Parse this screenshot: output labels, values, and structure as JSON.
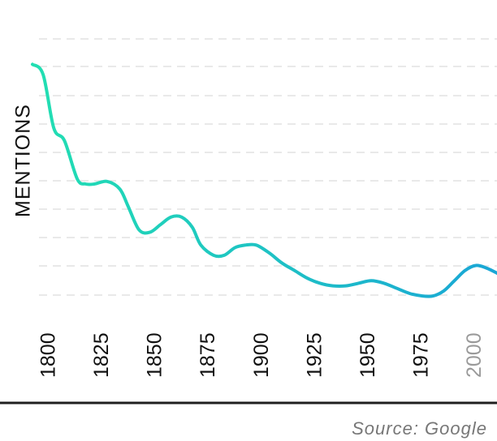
{
  "chart_data": {
    "type": "line",
    "ylabel": "MENTIONS",
    "xlabel": "",
    "title": "",
    "x_ticks": [
      "1800",
      "1825",
      "1850",
      "1875",
      "1900",
      "1925",
      "1950",
      "1975",
      "2000"
    ],
    "xlim": [
      1793,
      2011
    ],
    "ylim": [
      0,
      10
    ],
    "grid": true,
    "gradient_colors": [
      "#22dfb2",
      "#1aa6d6"
    ],
    "x": [
      1793,
      1798,
      1803,
      1808,
      1814,
      1818,
      1822,
      1828,
      1834,
      1838,
      1843,
      1848,
      1853,
      1858,
      1863,
      1868,
      1872,
      1878,
      1883,
      1888,
      1893,
      1898,
      1904,
      1910,
      1916,
      1922,
      1928,
      1934,
      1940,
      1946,
      1952,
      1958,
      1964,
      1970,
      1976,
      1981,
      1986,
      1991,
      1996,
      2001,
      2006,
      2011
    ],
    "y": [
      9.0,
      8.6,
      6.5,
      6.0,
      4.5,
      4.3,
      4.3,
      4.4,
      4.1,
      3.4,
      2.5,
      2.4,
      2.7,
      3.0,
      3.0,
      2.6,
      1.9,
      1.5,
      1.5,
      1.8,
      1.9,
      1.9,
      1.6,
      1.2,
      0.9,
      0.6,
      0.4,
      0.3,
      0.3,
      0.4,
      0.5,
      0.4,
      0.2,
      0.0,
      -0.1,
      -0.1,
      0.1,
      0.5,
      0.9,
      1.1,
      1.0,
      0.8
    ],
    "x_ticks_muted": [
      "2000"
    ]
  },
  "footer": {
    "source": "Source: Google"
  }
}
